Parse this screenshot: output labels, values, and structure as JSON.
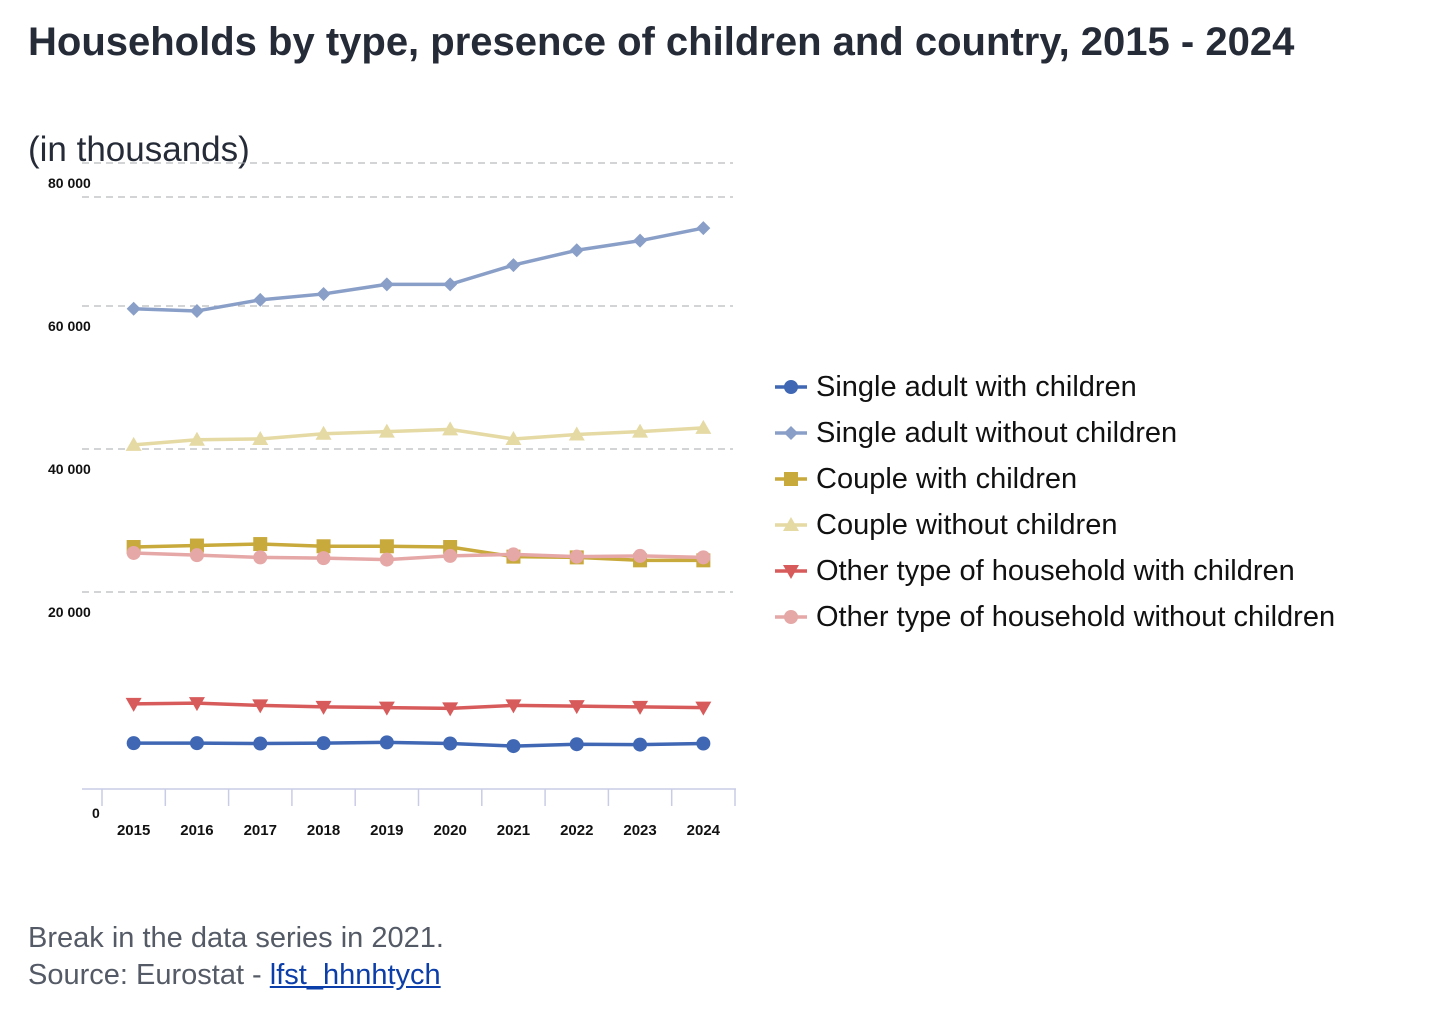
{
  "title": "Households by type, presence of children and country, 2015 - 2024",
  "subtitle": "(in thousands)",
  "footer": {
    "note": "Break in the data series in 2021.",
    "source_prefix": "Source: Eurostat - ",
    "source_link": "lfst_hhnhtych"
  },
  "chart_data": {
    "type": "line",
    "title": "Households by type, presence of children and country, 2015 - 2024",
    "subtitle": "(in thousands)",
    "x": [
      "2015",
      "2016",
      "2017",
      "2018",
      "2019",
      "2020",
      "2021",
      "2022",
      "2023",
      "2024"
    ],
    "ylim": [
      0,
      80000
    ],
    "yticks": [
      0,
      20000,
      40000,
      60000,
      80000
    ],
    "ytick_labels": [
      "0",
      "20 000",
      "40 000",
      "60 000",
      "80 000"
    ],
    "grid": "horizontal dashed",
    "legend_position": "right",
    "series": [
      {
        "name": "Single adult with children",
        "color": "#3f67b3",
        "marker": "circle",
        "values": [
          6200,
          6200,
          6150,
          6200,
          6300,
          6150,
          5800,
          6050,
          6000,
          6150
        ]
      },
      {
        "name": "Single adult without children",
        "color": "#8a9fc7",
        "marker": "diamond",
        "values": [
          64900,
          64600,
          66100,
          66900,
          68200,
          68200,
          70800,
          72800,
          74100,
          75800
        ]
      },
      {
        "name": "Couple with children",
        "color": "#c8a93c",
        "marker": "square",
        "values": [
          32700,
          32900,
          33100,
          32800,
          32800,
          32700,
          31400,
          31300,
          30900,
          30900
        ]
      },
      {
        "name": "Couple without children",
        "color": "#e5d9a4",
        "marker": "triangle-up",
        "values": [
          46500,
          47200,
          47300,
          48000,
          48300,
          48600,
          47300,
          47900,
          48300,
          48800
        ]
      },
      {
        "name": "Other type of household with children",
        "color": "#d85b5b",
        "marker": "triangle-down",
        "values": [
          11500,
          11600,
          11300,
          11100,
          11000,
          10900,
          11300,
          11200,
          11100,
          11000
        ]
      },
      {
        "name": "Other type of household without children",
        "color": "#e6a7a7",
        "marker": "circle",
        "values": [
          31900,
          31600,
          31300,
          31200,
          31000,
          31500,
          31700,
          31400,
          31500,
          31300
        ]
      }
    ]
  }
}
